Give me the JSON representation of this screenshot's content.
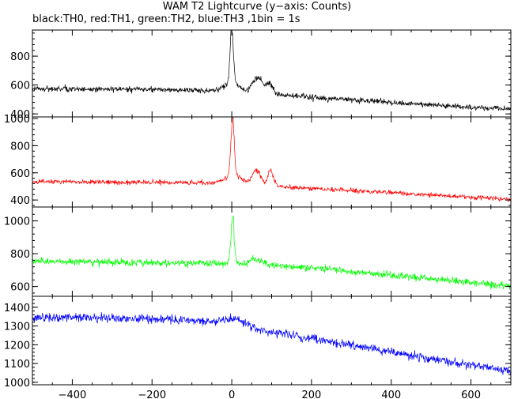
{
  "chart_data": {
    "type": "line",
    "title": "WAM T2 Lightcurve (y−axis: Counts)",
    "subtitle": "black:TH0, red:TH1, green:TH2, blue:TH3 ,1bin = 1s",
    "xlabel": "",
    "ylabel": "",
    "xlim": [
      -500,
      700
    ],
    "x_ticks": [
      -400,
      -200,
      0,
      200,
      400,
      600
    ],
    "x_tick_labels": [
      "−400",
      "−200",
      "0",
      "200",
      "400",
      "600"
    ],
    "bin_seconds": 1,
    "panels": [
      {
        "name": "TH0",
        "color": "#000000",
        "ylim": [
          390,
          970
        ],
        "y_ticks": [
          400,
          600,
          800
        ],
        "baseline": [
          [
            -500,
            575
          ],
          [
            -200,
            570
          ],
          [
            0,
            560
          ],
          [
            200,
            515
          ],
          [
            400,
            480
          ],
          [
            600,
            445
          ],
          [
            700,
            435
          ]
        ],
        "noise": 25,
        "peaks": [
          {
            "x": 0,
            "height": 370,
            "width": 4
          },
          {
            "x": 0,
            "height": 60,
            "width": 18
          },
          {
            "x": 65,
            "height": 110,
            "width": 12
          },
          {
            "x": 95,
            "height": 70,
            "width": 8
          }
        ]
      },
      {
        "name": "TH1",
        "color": "#ff0000",
        "ylim": [
          360,
          1000
        ],
        "y_ticks": [
          400,
          600,
          800,
          1000
        ],
        "baseline": [
          [
            -500,
            535
          ],
          [
            -200,
            530
          ],
          [
            0,
            525
          ],
          [
            200,
            485
          ],
          [
            400,
            455
          ],
          [
            600,
            420
          ],
          [
            700,
            405
          ]
        ],
        "noise": 22,
        "peaks": [
          {
            "x": 2,
            "height": 430,
            "width": 4
          },
          {
            "x": 5,
            "height": 60,
            "width": 20
          },
          {
            "x": 62,
            "height": 110,
            "width": 10
          },
          {
            "x": 98,
            "height": 110,
            "width": 7
          }
        ]
      },
      {
        "name": "TH2",
        "color": "#00ff00",
        "ylim": [
          550,
          1075
        ],
        "y_ticks": [
          600,
          800,
          1000
        ],
        "baseline": [
          [
            -500,
            755
          ],
          [
            -200,
            745
          ],
          [
            0,
            740
          ],
          [
            200,
            715
          ],
          [
            400,
            670
          ],
          [
            600,
            625
          ],
          [
            700,
            600
          ]
        ],
        "noise": 28,
        "peaks": [
          {
            "x": 2,
            "height": 300,
            "width": 4
          },
          {
            "x": 60,
            "height": 40,
            "width": 15
          }
        ]
      },
      {
        "name": "TH3",
        "color": "#0000ff",
        "ylim": [
          995,
          1450
        ],
        "y_ticks": [
          1000,
          1100,
          1200,
          1300,
          1400
        ],
        "baseline": [
          [
            -500,
            1345
          ],
          [
            -300,
            1345
          ],
          [
            -100,
            1330
          ],
          [
            0,
            1300
          ],
          [
            200,
            1235
          ],
          [
            400,
            1160
          ],
          [
            600,
            1090
          ],
          [
            700,
            1060
          ]
        ],
        "noise": 30,
        "peaks": [
          {
            "x": 5,
            "height": 40,
            "width": 30
          }
        ]
      }
    ]
  }
}
